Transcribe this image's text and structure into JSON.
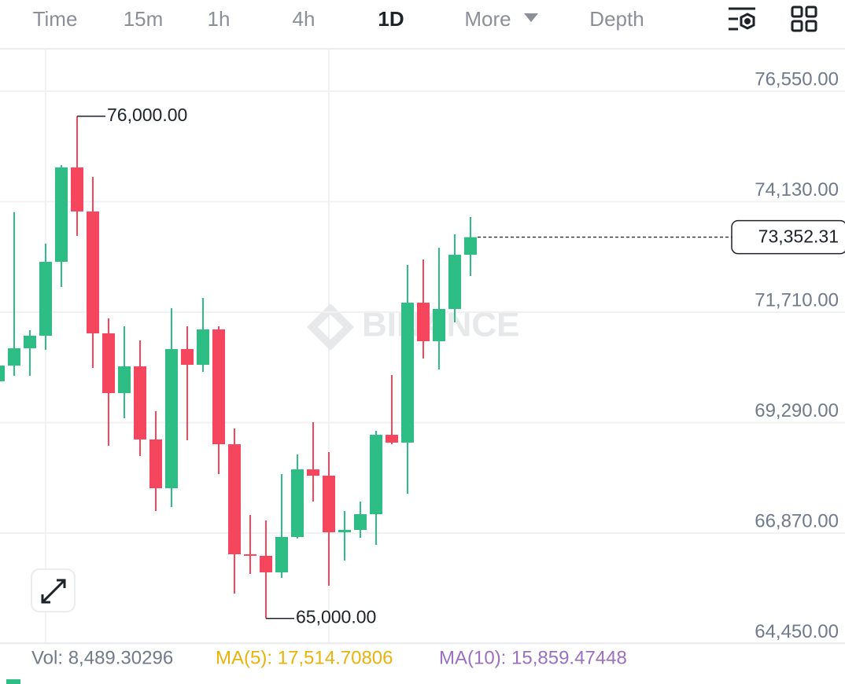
{
  "tabs": [
    "Time",
    "15m",
    "1h",
    "4h",
    "1D",
    "More",
    "Depth"
  ],
  "active_tab": "1D",
  "watermark": "BINANCE",
  "footer": {
    "vol": "Vol: 8,489.30296",
    "ma5": "MA(5): 17,514.70806",
    "ma10": "MA(10): 15,859.47448"
  },
  "chart_data": {
    "type": "candlestick",
    "up_color": "#2ebd85",
    "down_color": "#f6465d",
    "open": [
      70194,
      70539,
      70918,
      71193,
      72812,
      74880,
      73915,
      71245,
      69936,
      70522,
      68920,
      67852,
      70901,
      70556,
      71331,
      68816,
      66405,
      66371,
      66009,
      66784,
      68265,
      68127,
      66887,
      66939,
      67283,
      69023,
      68851,
      71917,
      71073,
      71779,
      72967
    ],
    "high": [
      70620,
      73900,
      71314,
      73210,
      74930,
      76000,
      74670,
      71572,
      71400,
      71090,
      69540,
      71796,
      71400,
      72020,
      71400,
      69161,
      67266,
      67146,
      68162,
      68593,
      69299,
      68644,
      67352,
      67559,
      69109,
      70332,
      72744,
      72864,
      73120,
      73415,
      73794
    ],
    "low": [
      70194,
      70315,
      70315,
      70883,
      72261,
      73380,
      70487,
      68782,
      69385,
      68558,
      67352,
      67438,
      68903,
      70401,
      68162,
      65544,
      65974,
      65000,
      65888,
      66750,
      67559,
      65716,
      66267,
      66767,
      66612,
      68816,
      67731,
      70694,
      70453,
      71486,
      72502
    ],
    "close": [
      70539,
      70918,
      71193,
      72812,
      74880,
      73915,
      71245,
      69936,
      70522,
      68920,
      67852,
      70901,
      70556,
      71331,
      68816,
      66405,
      66371,
      66009,
      66784,
      68265,
      68127,
      66887,
      66939,
      67283,
      69023,
      68851,
      71917,
      71073,
      71779,
      72967,
      73352.31
    ],
    "ylim": [
      64450,
      77480
    ],
    "yticks": [
      {
        "value": 76550,
        "label": "76,550.00"
      },
      {
        "value": 74130,
        "label": "74,130.00"
      },
      {
        "value": 71710,
        "label": "71,710.00"
      },
      {
        "value": 69290,
        "label": "69,290.00"
      },
      {
        "value": 66870,
        "label": "66,870.00"
      },
      {
        "value": 64450,
        "label": "64,450.00"
      }
    ],
    "grid": true,
    "annotations": [
      {
        "value": 76000,
        "label": "76,000.00"
      },
      {
        "value": 65000,
        "label": "65,000.00"
      }
    ],
    "last_price": {
      "value": 73352.31,
      "label": "73,352.31"
    }
  }
}
